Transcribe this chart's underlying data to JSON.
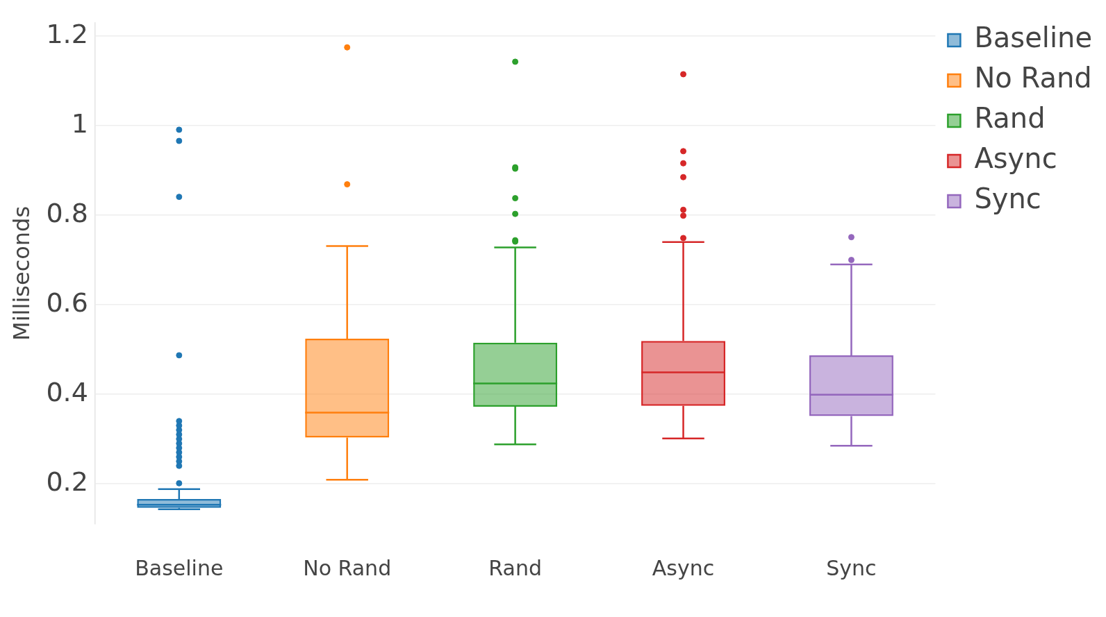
{
  "chart_data": {
    "type": "box",
    "ylabel": "Milliseconds",
    "categories": [
      "Baseline",
      "No Rand",
      "Rand",
      "Async",
      "Sync"
    ],
    "ylim": [
      0.11,
      1.23
    ],
    "yticks": [
      0.2,
      0.4,
      0.6,
      0.8,
      1,
      1.2
    ],
    "grid": "y",
    "legend": "top right",
    "marker": "circle",
    "series": [
      {
        "name": "Baseline",
        "color": "#1f77b4",
        "x": [
          "Baseline"
        ],
        "boxes": [
          {
            "low": 0.143,
            "q1": 0.146,
            "median": 0.153,
            "q3": 0.166,
            "high": 0.188,
            "outliers": [
              0.201,
              0.24,
              0.25,
              0.26,
              0.27,
              0.28,
              0.29,
              0.3,
              0.31,
              0.32,
              0.33,
              0.34,
              0.487,
              0.841,
              0.966,
              0.991
            ]
          }
        ]
      },
      {
        "name": "No Rand",
        "color": "#ff7f0e",
        "x": [
          "No Rand"
        ],
        "boxes": [
          {
            "low": 0.209,
            "q1": 0.303,
            "median": 0.359,
            "q3": 0.524,
            "high": 0.731,
            "outliers": [
              0.869,
              1.175
            ]
          }
        ]
      },
      {
        "name": "Rand",
        "color": "#2ca02c",
        "x": [
          "Rand"
        ],
        "boxes": [
          {
            "low": 0.288,
            "q1": 0.372,
            "median": 0.424,
            "q3": 0.515,
            "high": 0.728,
            "outliers": [
              0.741,
              0.744,
              0.803,
              0.838,
              0.904,
              0.907,
              1.143
            ]
          }
        ]
      },
      {
        "name": "Async",
        "color": "#d62728",
        "x": [
          "Async"
        ],
        "boxes": [
          {
            "low": 0.301,
            "q1": 0.374,
            "median": 0.449,
            "q3": 0.519,
            "high": 0.74,
            "outliers": [
              0.749,
              0.799,
              0.812,
              0.885,
              0.916,
              0.943,
              1.115
            ]
          }
        ]
      },
      {
        "name": "Sync",
        "color": "#9467bd",
        "x": [
          "Sync"
        ],
        "boxes": [
          {
            "low": 0.285,
            "q1": 0.351,
            "median": 0.399,
            "q3": 0.487,
            "high": 0.69,
            "outliers": [
              0.7,
              0.751
            ]
          }
        ]
      }
    ]
  }
}
